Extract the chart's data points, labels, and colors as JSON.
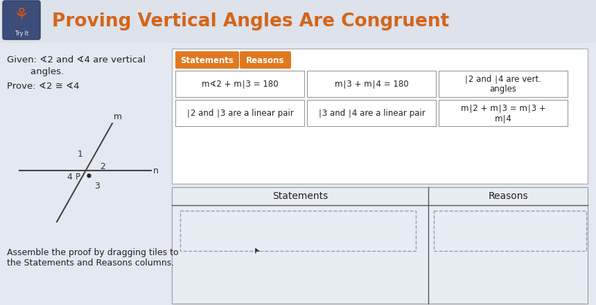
{
  "title": "Proving Vertical Angles Are Congruent",
  "title_color": "#d4651a",
  "header_bg": "#dde2eb",
  "content_bg": "#e4e8f0",
  "right_panel_bg": "#ffffff",
  "given_text1": "Given: ∢2 and ∢4 are vertical",
  "given_text2": "        angles.",
  "prove_text": "Prove: ∢2 ≅ ∢4",
  "assemble_text1": "Assemble the proof by dragging tiles to",
  "assemble_text2": "the Statements and Reasons columns.",
  "tile_row1": [
    "m∢2 + m∣3 = 180",
    "m∣3 + m∣4 = 180",
    "∣2 and ∣4 are vert.\nangles"
  ],
  "tile_row2": [
    "∣2 and ∣3 are a linear pair",
    "∣3 and ∣4 are a linear pair",
    "m∣2 + m∣3 = m∣3 +\nm∣4"
  ],
  "stmt_label": "Statements",
  "rsn_label": "Reasons",
  "btn_color": "#e07820",
  "btn_text_color": "#ffffff",
  "tile_bg": "#ffffff",
  "tile_border": "#999999",
  "table_bg": "#e8ecf3",
  "table_border": "#999999",
  "table_header_border": "#555555",
  "dashed_box_border": "#9999bb",
  "icon_bg": "#3d4d7a",
  "diagram_color": "#444444",
  "text_color": "#222222"
}
